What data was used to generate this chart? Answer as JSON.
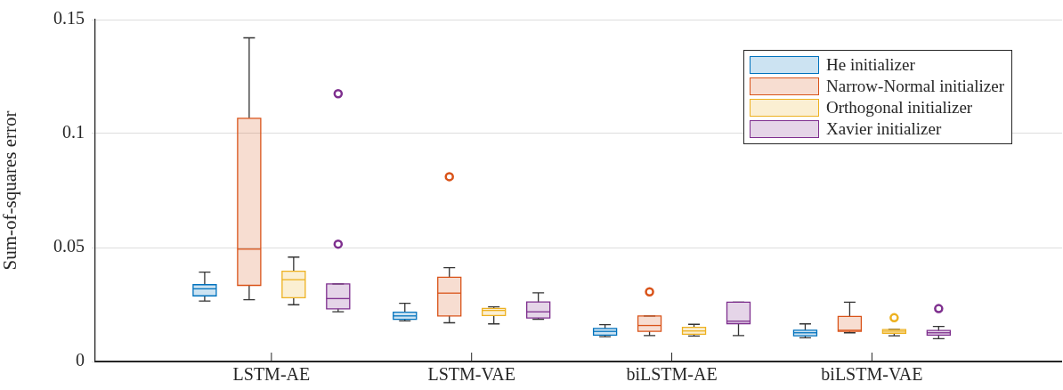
{
  "chart_data": {
    "type": "box",
    "ylabel": "Sum-of-squares error",
    "categories": [
      "LSTM-AE",
      "LSTM-VAE",
      "biLSTM-AE",
      "biLSTM-VAE"
    ],
    "ylim": [
      0,
      0.15
    ],
    "yticks": [
      0,
      0.05,
      {
        "value": 0.1,
        "label": "0.1"
      },
      0.15
    ],
    "grid": "y",
    "legend": "top right",
    "marker": "circle",
    "series": [
      {
        "name": "He initializer",
        "color": "#0072bd",
        "boxes": [
          {
            "low": 0.0265,
            "q1": 0.0288,
            "median": 0.0319,
            "q3": 0.0337,
            "high": 0.0392
          },
          {
            "low": 0.0178,
            "q1": 0.0185,
            "median": 0.02,
            "q3": 0.0216,
            "high": 0.0255
          },
          {
            "low": 0.0109,
            "q1": 0.0116,
            "median": 0.0132,
            "q3": 0.0145,
            "high": 0.0162
          },
          {
            "low": 0.0104,
            "q1": 0.0113,
            "median": 0.0126,
            "q3": 0.0137,
            "high": 0.0165
          }
        ]
      },
      {
        "name": "Narrow-Normal initializer",
        "color": "#d95319",
        "boxes": [
          {
            "low": 0.0271,
            "q1": 0.0334,
            "median": 0.0493,
            "q3": 0.1067,
            "high": 0.142
          },
          {
            "low": 0.017,
            "q1": 0.02,
            "median": 0.03,
            "q3": 0.037,
            "high": 0.0412,
            "outliers": [
              0.0811
            ]
          },
          {
            "low": 0.0114,
            "q1": 0.0132,
            "median": 0.0158,
            "q3": 0.02,
            "high": 0.02,
            "outliers": [
              0.0306
            ]
          },
          {
            "low": 0.0126,
            "q1": 0.0132,
            "median": 0.0137,
            "q3": 0.0198,
            "high": 0.026
          }
        ]
      },
      {
        "name": "Orthogonal initializer",
        "color": "#edb120",
        "boxes": [
          {
            "low": 0.0249,
            "q1": 0.028,
            "median": 0.0359,
            "q3": 0.0396,
            "high": 0.0458
          },
          {
            "low": 0.0165,
            "q1": 0.0202,
            "median": 0.0224,
            "q3": 0.0233,
            "high": 0.024
          },
          {
            "low": 0.0112,
            "q1": 0.012,
            "median": 0.0134,
            "q3": 0.015,
            "high": 0.0163
          },
          {
            "low": 0.0113,
            "q1": 0.0124,
            "median": 0.0133,
            "q3": 0.014,
            "high": 0.0141,
            "outliers": [
              0.0192
            ]
          }
        ]
      },
      {
        "name": "Xavier initializer",
        "color": "#7e2f8e",
        "boxes": [
          {
            "low": 0.0218,
            "q1": 0.0231,
            "median": 0.0276,
            "q3": 0.034,
            "high": 0.034,
            "outliers": [
              0.1175,
              0.0515
            ]
          },
          {
            "low": 0.0185,
            "q1": 0.0191,
            "median": 0.0218,
            "q3": 0.0261,
            "high": 0.0301
          },
          {
            "low": 0.0114,
            "q1": 0.0166,
            "median": 0.0177,
            "q3": 0.026,
            "high": 0.026
          },
          {
            "low": 0.01,
            "q1": 0.0116,
            "median": 0.0126,
            "q3": 0.0136,
            "high": 0.0154,
            "outliers": [
              0.0232
            ]
          }
        ]
      }
    ]
  }
}
